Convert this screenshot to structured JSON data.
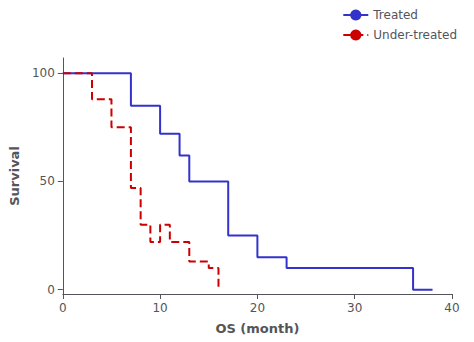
{
  "chart_data": {
    "type": "line",
    "xlabel": "OS (month)",
    "ylabel": "Survival",
    "xlim": [
      0,
      40
    ],
    "ylim": [
      -2,
      107
    ],
    "xticks": [
      0,
      10,
      20,
      30,
      40
    ],
    "yticks": [
      0,
      50,
      100
    ],
    "grid": false,
    "legend": "upper right",
    "series": [
      {
        "name": "Treated",
        "color": "#3333cc",
        "line_style": "solid",
        "x": [
          0,
          7,
          7,
          10,
          10,
          12,
          12,
          13,
          13,
          17,
          17,
          20,
          20,
          23,
          23,
          36,
          36,
          38
        ],
        "values": [
          100,
          100,
          85,
          85,
          72,
          72,
          62,
          62,
          50,
          50,
          25,
          25,
          15,
          15,
          10,
          10,
          0,
          0
        ]
      },
      {
        "name": "Under-treated",
        "color": "#cc0000",
        "line_style": "dashed",
        "x": [
          0,
          3,
          3,
          5,
          5,
          7,
          7,
          8,
          8,
          9,
          9,
          10,
          10,
          11,
          11,
          13,
          13,
          15,
          15,
          16,
          16
        ],
        "values": [
          100,
          100,
          88,
          88,
          75,
          75,
          47,
          47,
          30,
          30,
          22,
          22,
          30,
          30,
          22,
          22,
          13,
          13,
          10,
          10,
          0
        ]
      }
    ]
  }
}
